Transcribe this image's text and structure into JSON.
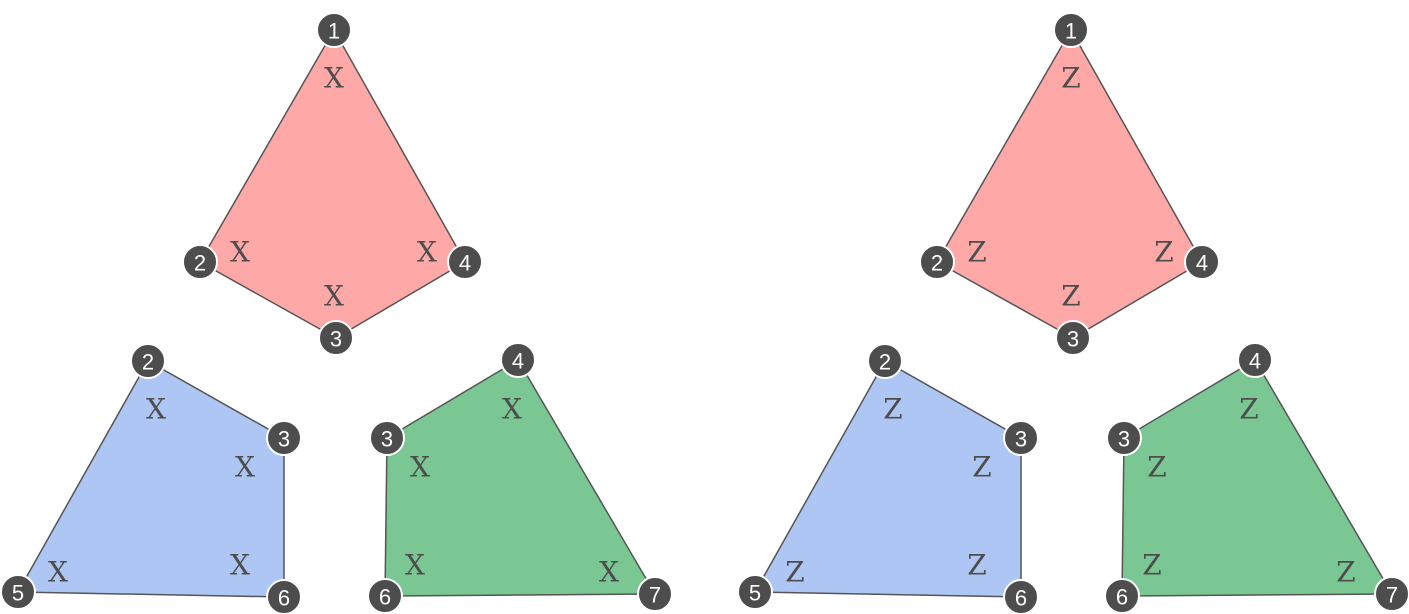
{
  "colors": {
    "red_face": "#ffa8a8",
    "blue_face": "#aec6f4",
    "green_face": "#7ac794",
    "vertex": "#4d4d4d"
  },
  "panels": [
    {
      "op_letter": "X",
      "faces": [
        {
          "color_key": "red_face",
          "vertices": [
            "1",
            "2",
            "3",
            "4"
          ]
        },
        {
          "color_key": "blue_face",
          "vertices": [
            "2",
            "3",
            "5",
            "6"
          ]
        },
        {
          "color_key": "green_face",
          "vertices": [
            "3",
            "4",
            "6",
            "7"
          ]
        }
      ]
    },
    {
      "op_letter": "Z",
      "faces": [
        {
          "color_key": "red_face",
          "vertices": [
            "1",
            "2",
            "3",
            "4"
          ]
        },
        {
          "color_key": "blue_face",
          "vertices": [
            "2",
            "3",
            "5",
            "6"
          ]
        },
        {
          "color_key": "green_face",
          "vertices": [
            "3",
            "4",
            "6",
            "7"
          ]
        }
      ]
    }
  ]
}
